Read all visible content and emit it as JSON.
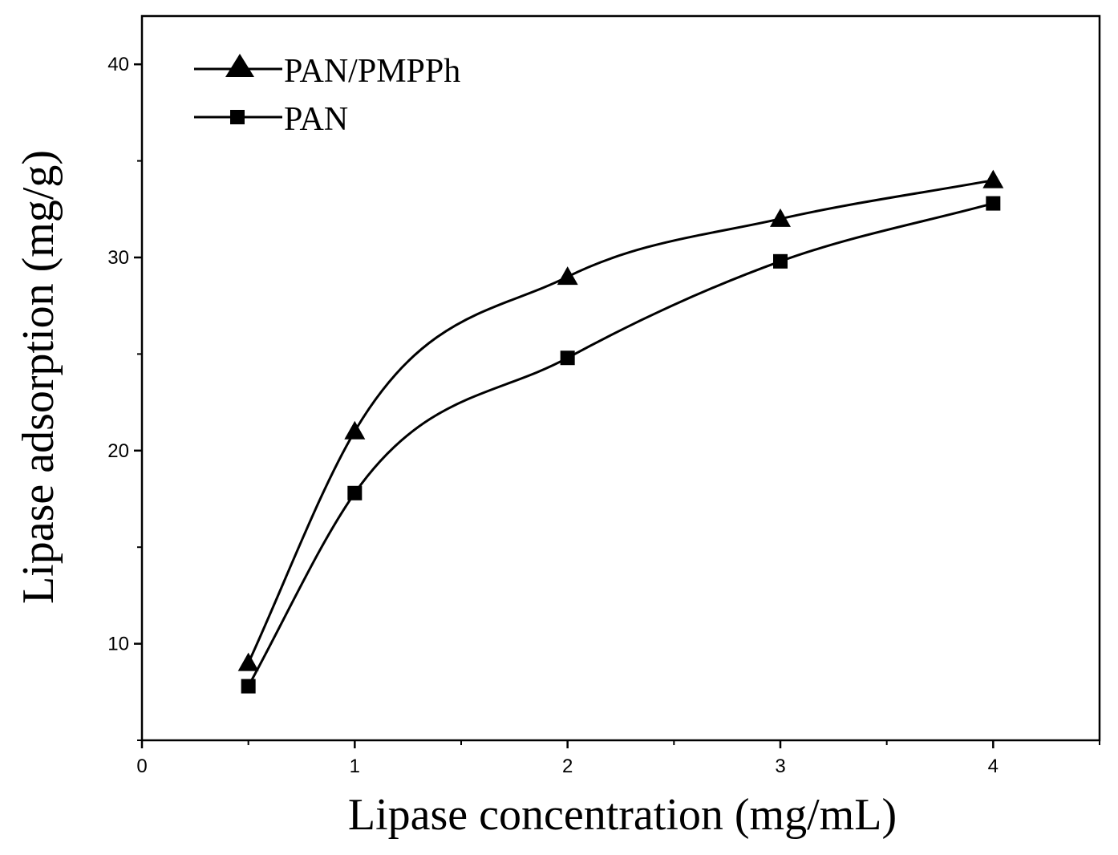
{
  "chart_data": {
    "type": "line",
    "title": "",
    "xlabel": "Lipase concentration (mg/mL)",
    "ylabel": "Lipase adsorption (mg/g)",
    "xlim": [
      0,
      4.5
    ],
    "ylim": [
      5,
      42.5
    ],
    "x_major_ticks": [
      0,
      1,
      2,
      3,
      4
    ],
    "x_minor_ticks": [
      0.5,
      1.5,
      2.5,
      3.5,
      4.5
    ],
    "y_major_ticks": [
      10,
      20,
      30,
      40
    ],
    "y_minor_ticks": [
      5,
      15,
      25,
      35
    ],
    "x_tick_labels": [
      "0",
      "1",
      "2",
      "3",
      "4"
    ],
    "y_tick_labels": [
      "10",
      "20",
      "30",
      "40"
    ],
    "grid": false,
    "legend_position": "top-left",
    "smooth": true,
    "series": [
      {
        "name": "PAN/PMPPh",
        "marker": "triangle",
        "color": "#000000",
        "x": [
          0.5,
          1,
          2,
          3,
          4
        ],
        "y": [
          9.0,
          21.0,
          29.0,
          32.0,
          34.0
        ]
      },
      {
        "name": "PAN",
        "marker": "square",
        "color": "#000000",
        "x": [
          0.5,
          1,
          2,
          3,
          4
        ],
        "y": [
          7.8,
          17.8,
          24.8,
          29.8,
          32.8
        ]
      }
    ]
  }
}
